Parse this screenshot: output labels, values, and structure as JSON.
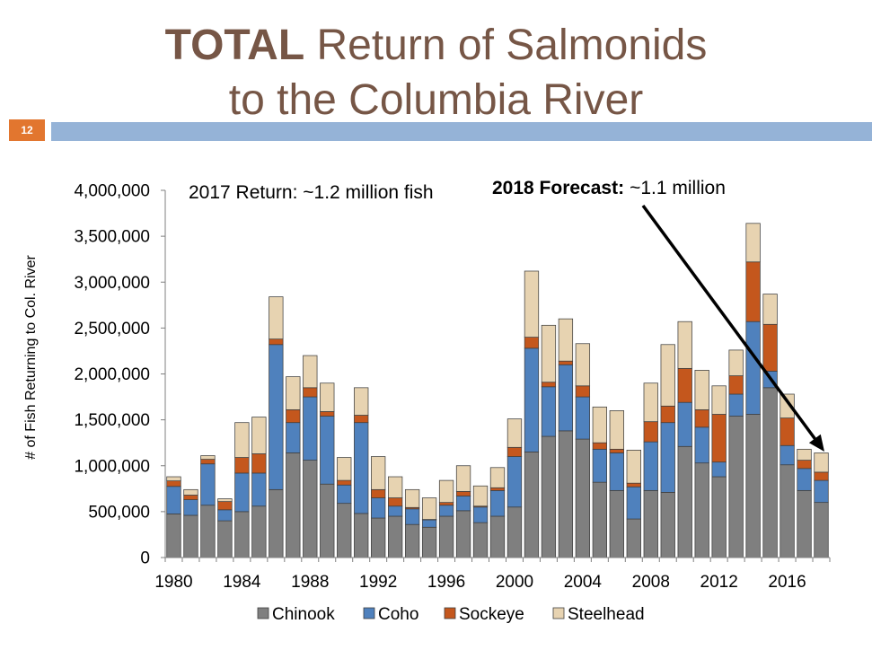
{
  "slide": {
    "title_bold": "TOTAL",
    "title_rest": "Return of Salmonids",
    "title_line2": "to the Columbia River",
    "number": "12",
    "colors": {
      "title": "#765646",
      "number_box": "#e2762f",
      "band": "#95b3d7"
    }
  },
  "annotations": {
    "return_2017": "2017 Return: ~1.2 million fish",
    "forecast_label": "2018 Forecast:",
    "forecast_value": "~1.1 million"
  },
  "chart_data": {
    "type": "bar",
    "stacked": true,
    "xlabel": "",
    "ylabel": "# of Fish Returning to Col. River",
    "ylim": [
      0,
      4000000
    ],
    "grid": false,
    "legend_position": "bottom",
    "x": [
      1980,
      1981,
      1982,
      1983,
      1984,
      1985,
      1986,
      1987,
      1988,
      1989,
      1990,
      1991,
      1992,
      1993,
      1994,
      1995,
      1996,
      1997,
      1998,
      1999,
      2000,
      2001,
      2002,
      2003,
      2004,
      2005,
      2006,
      2007,
      2008,
      2009,
      2010,
      2011,
      2012,
      2013,
      2014,
      2015,
      2016,
      2017,
      2018
    ],
    "x_tick_labels": [
      "1980",
      "1984",
      "1988",
      "1992",
      "1996",
      "2000",
      "2004",
      "2008",
      "2012",
      "2016"
    ],
    "y_tick_labels": [
      "0",
      "500,000",
      "1,000,000",
      "1,500,000",
      "2,000,000",
      "2,500,000",
      "3,000,000",
      "3,500,000",
      "4,000,000"
    ],
    "series": [
      {
        "name": "Chinook",
        "color": "#7f7f7f",
        "values": [
          475000,
          460000,
          570000,
          400000,
          500000,
          560000,
          740000,
          1140000,
          1060000,
          800000,
          590000,
          480000,
          430000,
          450000,
          360000,
          330000,
          450000,
          510000,
          380000,
          450000,
          550000,
          1150000,
          1320000,
          1380000,
          1290000,
          820000,
          730000,
          420000,
          730000,
          710000,
          1210000,
          1030000,
          880000,
          1540000,
          1560000,
          1850000,
          1010000,
          730000,
          600000
        ]
      },
      {
        "name": "Coho",
        "color": "#4f81bd",
        "values": [
          300000,
          170000,
          450000,
          120000,
          420000,
          360000,
          1580000,
          330000,
          690000,
          740000,
          200000,
          990000,
          220000,
          110000,
          170000,
          80000,
          120000,
          160000,
          170000,
          280000,
          550000,
          1130000,
          540000,
          720000,
          460000,
          360000,
          410000,
          350000,
          530000,
          760000,
          480000,
          390000,
          160000,
          240000,
          1010000,
          180000,
          210000,
          240000,
          240000
        ]
      },
      {
        "name": "Sockeye",
        "color": "#c4571d",
        "values": [
          60000,
          50000,
          50000,
          90000,
          170000,
          210000,
          60000,
          140000,
          100000,
          50000,
          50000,
          80000,
          90000,
          90000,
          15000,
          5000,
          30000,
          50000,
          10000,
          30000,
          100000,
          120000,
          50000,
          40000,
          120000,
          70000,
          40000,
          40000,
          220000,
          180000,
          370000,
          190000,
          520000,
          200000,
          650000,
          510000,
          300000,
          90000,
          90000
        ]
      },
      {
        "name": "Steelhead",
        "color": "#e7d3b1",
        "values": [
          45000,
          60000,
          40000,
          30000,
          380000,
          400000,
          460000,
          360000,
          350000,
          310000,
          250000,
          300000,
          360000,
          230000,
          195000,
          235000,
          240000,
          280000,
          220000,
          220000,
          310000,
          720000,
          620000,
          460000,
          460000,
          390000,
          420000,
          360000,
          420000,
          670000,
          510000,
          430000,
          310000,
          280000,
          420000,
          330000,
          260000,
          120000,
          210000
        ]
      }
    ]
  }
}
